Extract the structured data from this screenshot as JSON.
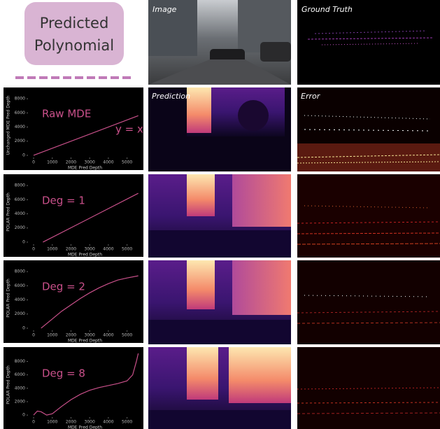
{
  "header": {
    "title_lines": [
      "Predicted",
      "Polynomial"
    ]
  },
  "columns": {
    "image": "Image",
    "ground_truth": "Ground Truth",
    "prediction": "Prediction",
    "error": "Error"
  },
  "chart_data": [
    {
      "type": "line",
      "label": "Raw MDE",
      "annotation": "y = x",
      "xlabel": "MDE Pred Depth",
      "ylabel": "Unchanged MDE Pred Depth",
      "x": [
        0,
        5600
      ],
      "values": [
        0,
        5600
      ],
      "color": "#c9508a",
      "xlim": [
        -300,
        5800
      ],
      "xticks": [
        0,
        1000,
        2000,
        3000,
        4000,
        5000
      ],
      "ylim": [
        -300,
        8800
      ],
      "yticks": [
        0,
        2000,
        4000,
        6000,
        8000
      ]
    },
    {
      "type": "line",
      "label": "Deg = 1",
      "xlabel": "MDE Pred Depth",
      "ylabel": "POLAR Pred Depth",
      "x": [
        500,
        5600
      ],
      "values": [
        0,
        6900
      ],
      "color": "#c9508a",
      "xlim": [
        -300,
        5800
      ],
      "xticks": [
        0,
        1000,
        2000,
        3000,
        4000,
        5000
      ],
      "ylim": [
        -300,
        8800
      ],
      "yticks": [
        0,
        2000,
        4000,
        6000,
        8000
      ]
    },
    {
      "type": "line",
      "label": "Deg = 2",
      "xlabel": "MDE Pred Depth",
      "ylabel": "POLAR Pred Depth",
      "x": [
        400,
        1000,
        1500,
        2000,
        2500,
        3000,
        3500,
        4000,
        4500,
        5000,
        5600
      ],
      "values": [
        0,
        1300,
        2400,
        3300,
        4200,
        5000,
        5700,
        6300,
        6800,
        7100,
        7400
      ],
      "color": "#c9508a",
      "xlim": [
        -300,
        5800
      ],
      "xticks": [
        0,
        1000,
        2000,
        3000,
        4000,
        5000
      ],
      "ylim": [
        -300,
        8800
      ],
      "yticks": [
        0,
        2000,
        4000,
        6000,
        8000
      ]
    },
    {
      "type": "line",
      "label": "Deg = 8",
      "xlabel": "MDE Pred Depth",
      "ylabel": "POLAR Pred Depth",
      "x": [
        0,
        200,
        400,
        700,
        1000,
        1500,
        2000,
        2500,
        3000,
        3500,
        4000,
        4500,
        5000,
        5300,
        5500,
        5600
      ],
      "values": [
        0,
        600,
        500,
        0,
        200,
        1300,
        2300,
        3100,
        3700,
        4100,
        4400,
        4700,
        5100,
        6000,
        8000,
        9200
      ],
      "color": "#c9508a",
      "xlim": [
        -300,
        5800
      ],
      "xticks": [
        0,
        1000,
        2000,
        3000,
        4000,
        5000
      ],
      "ylim": [
        -300,
        9300
      ],
      "yticks": [
        0,
        2000,
        4000,
        6000,
        8000
      ]
    }
  ]
}
